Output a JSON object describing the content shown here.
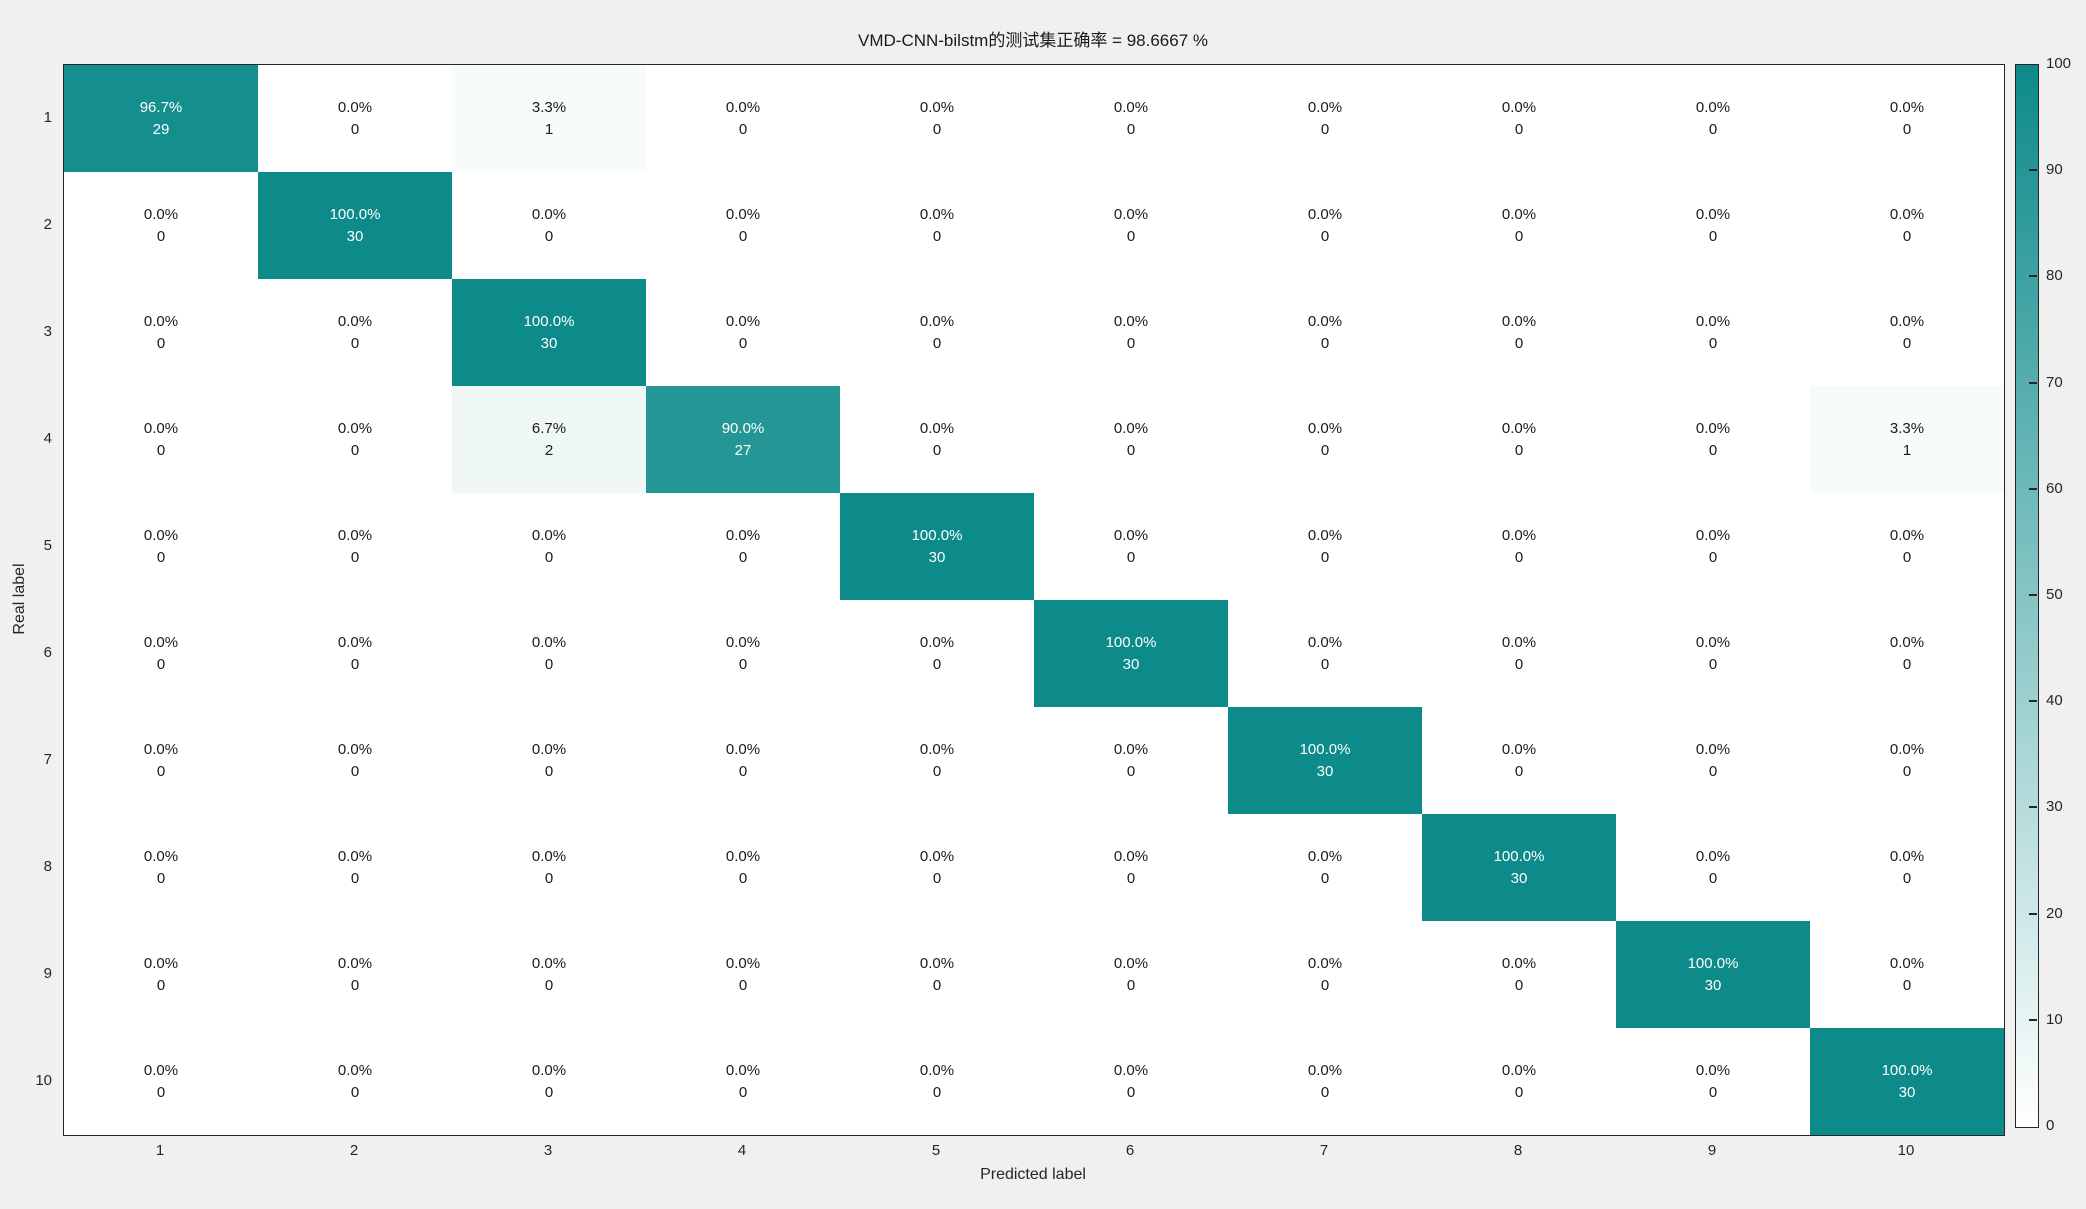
{
  "figure": {
    "background_color": "#f0f0f0",
    "plot_background_color": "#ffffff",
    "axis_color": "#262626"
  },
  "chart_data": {
    "type": "heatmap",
    "subtype": "confusion-matrix",
    "title": "VMD-CNN-bilstm的测试集正确率 = 98.6667 %",
    "xlabel": "Predicted label",
    "ylabel": "Real label",
    "x_ticks": [
      "1",
      "2",
      "3",
      "4",
      "5",
      "6",
      "7",
      "8",
      "9",
      "10"
    ],
    "y_ticks": [
      "1",
      "2",
      "3",
      "4",
      "5",
      "6",
      "7",
      "8",
      "9",
      "10"
    ],
    "grid": false,
    "legend": false,
    "percent": [
      [
        96.7,
        0.0,
        3.3,
        0.0,
        0.0,
        0.0,
        0.0,
        0.0,
        0.0,
        0.0
      ],
      [
        0.0,
        100.0,
        0.0,
        0.0,
        0.0,
        0.0,
        0.0,
        0.0,
        0.0,
        0.0
      ],
      [
        0.0,
        0.0,
        100.0,
        0.0,
        0.0,
        0.0,
        0.0,
        0.0,
        0.0,
        0.0
      ],
      [
        0.0,
        0.0,
        6.7,
        90.0,
        0.0,
        0.0,
        0.0,
        0.0,
        0.0,
        3.3
      ],
      [
        0.0,
        0.0,
        0.0,
        0.0,
        100.0,
        0.0,
        0.0,
        0.0,
        0.0,
        0.0
      ],
      [
        0.0,
        0.0,
        0.0,
        0.0,
        0.0,
        100.0,
        0.0,
        0.0,
        0.0,
        0.0
      ],
      [
        0.0,
        0.0,
        0.0,
        0.0,
        0.0,
        0.0,
        100.0,
        0.0,
        0.0,
        0.0
      ],
      [
        0.0,
        0.0,
        0.0,
        0.0,
        0.0,
        0.0,
        0.0,
        100.0,
        0.0,
        0.0
      ],
      [
        0.0,
        0.0,
        0.0,
        0.0,
        0.0,
        0.0,
        0.0,
        0.0,
        100.0,
        0.0
      ],
      [
        0.0,
        0.0,
        0.0,
        0.0,
        0.0,
        0.0,
        0.0,
        0.0,
        0.0,
        100.0
      ]
    ],
    "counts": [
      [
        29,
        0,
        1,
        0,
        0,
        0,
        0,
        0,
        0,
        0
      ],
      [
        0,
        30,
        0,
        0,
        0,
        0,
        0,
        0,
        0,
        0
      ],
      [
        0,
        0,
        30,
        0,
        0,
        0,
        0,
        0,
        0,
        0
      ],
      [
        0,
        0,
        2,
        27,
        0,
        0,
        0,
        0,
        0,
        1
      ],
      [
        0,
        0,
        0,
        0,
        30,
        0,
        0,
        0,
        0,
        0
      ],
      [
        0,
        0,
        0,
        0,
        0,
        30,
        0,
        0,
        0,
        0
      ],
      [
        0,
        0,
        0,
        0,
        0,
        0,
        30,
        0,
        0,
        0
      ],
      [
        0,
        0,
        0,
        0,
        0,
        0,
        0,
        30,
        0,
        0
      ],
      [
        0,
        0,
        0,
        0,
        0,
        0,
        0,
        0,
        30,
        0
      ],
      [
        0,
        0,
        0,
        0,
        0,
        0,
        0,
        0,
        0,
        30
      ]
    ],
    "colormap": {
      "low": "#ffffff",
      "high": "#0d8a8a",
      "light_text_threshold": 50
    },
    "colorbar": {
      "position": "right",
      "min": 0,
      "max": 100,
      "tick_values": [
        0,
        10,
        20,
        30,
        40,
        50,
        60,
        70,
        80,
        90,
        100
      ],
      "tick_labels": [
        "0",
        "10",
        "20",
        "30",
        "40",
        "50",
        "60",
        "70",
        "80",
        "90",
        "100"
      ]
    }
  }
}
